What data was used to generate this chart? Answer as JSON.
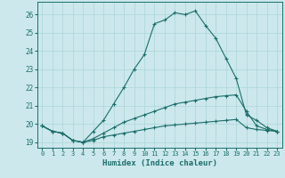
{
  "background_color": "#cce8ec",
  "grid_color": "#b0d8dc",
  "line_color": "#1a6e6a",
  "xlabel": "Humidex (Indice chaleur)",
  "xlim": [
    -0.5,
    23.5
  ],
  "ylim": [
    18.7,
    26.7
  ],
  "yticks": [
    19,
    20,
    21,
    22,
    23,
    24,
    25,
    26
  ],
  "xticks": [
    0,
    1,
    2,
    3,
    4,
    5,
    6,
    7,
    8,
    9,
    10,
    11,
    12,
    13,
    14,
    15,
    16,
    17,
    18,
    19,
    20,
    21,
    22,
    23
  ],
  "series": [
    {
      "x": [
        0,
        1,
        2,
        3,
        4,
        5,
        6,
        7,
        8,
        9,
        10,
        11,
        12,
        13,
        14,
        15,
        16,
        17,
        18,
        19,
        20,
        21,
        22,
        23
      ],
      "y": [
        19.9,
        19.6,
        19.5,
        19.1,
        19.0,
        19.1,
        19.3,
        19.4,
        19.5,
        19.6,
        19.7,
        19.8,
        19.9,
        19.95,
        20.0,
        20.05,
        20.1,
        20.15,
        20.2,
        20.25,
        19.8,
        19.7,
        19.65,
        19.6
      ]
    },
    {
      "x": [
        0,
        1,
        2,
        3,
        4,
        5,
        6,
        7,
        8,
        9,
        10,
        11,
        12,
        13,
        14,
        15,
        16,
        17,
        18,
        19,
        20,
        21,
        22,
        23
      ],
      "y": [
        19.9,
        19.6,
        19.5,
        19.1,
        19.0,
        19.2,
        19.5,
        19.8,
        20.1,
        20.3,
        20.5,
        20.7,
        20.9,
        21.1,
        21.2,
        21.3,
        21.4,
        21.5,
        21.55,
        21.6,
        20.7,
        19.9,
        19.7,
        19.6
      ]
    },
    {
      "x": [
        0,
        1,
        2,
        3,
        4,
        5,
        6,
        7,
        8,
        9,
        10,
        11,
        12,
        13,
        14,
        15,
        16,
        17,
        18,
        19,
        20,
        21,
        22,
        23
      ],
      "y": [
        19.9,
        19.6,
        19.5,
        19.1,
        19.0,
        19.6,
        20.2,
        21.1,
        22.0,
        23.0,
        23.8,
        25.5,
        25.7,
        26.1,
        26.0,
        26.2,
        25.4,
        24.7,
        23.6,
        22.5,
        20.5,
        20.2,
        19.8,
        19.6
      ]
    }
  ]
}
